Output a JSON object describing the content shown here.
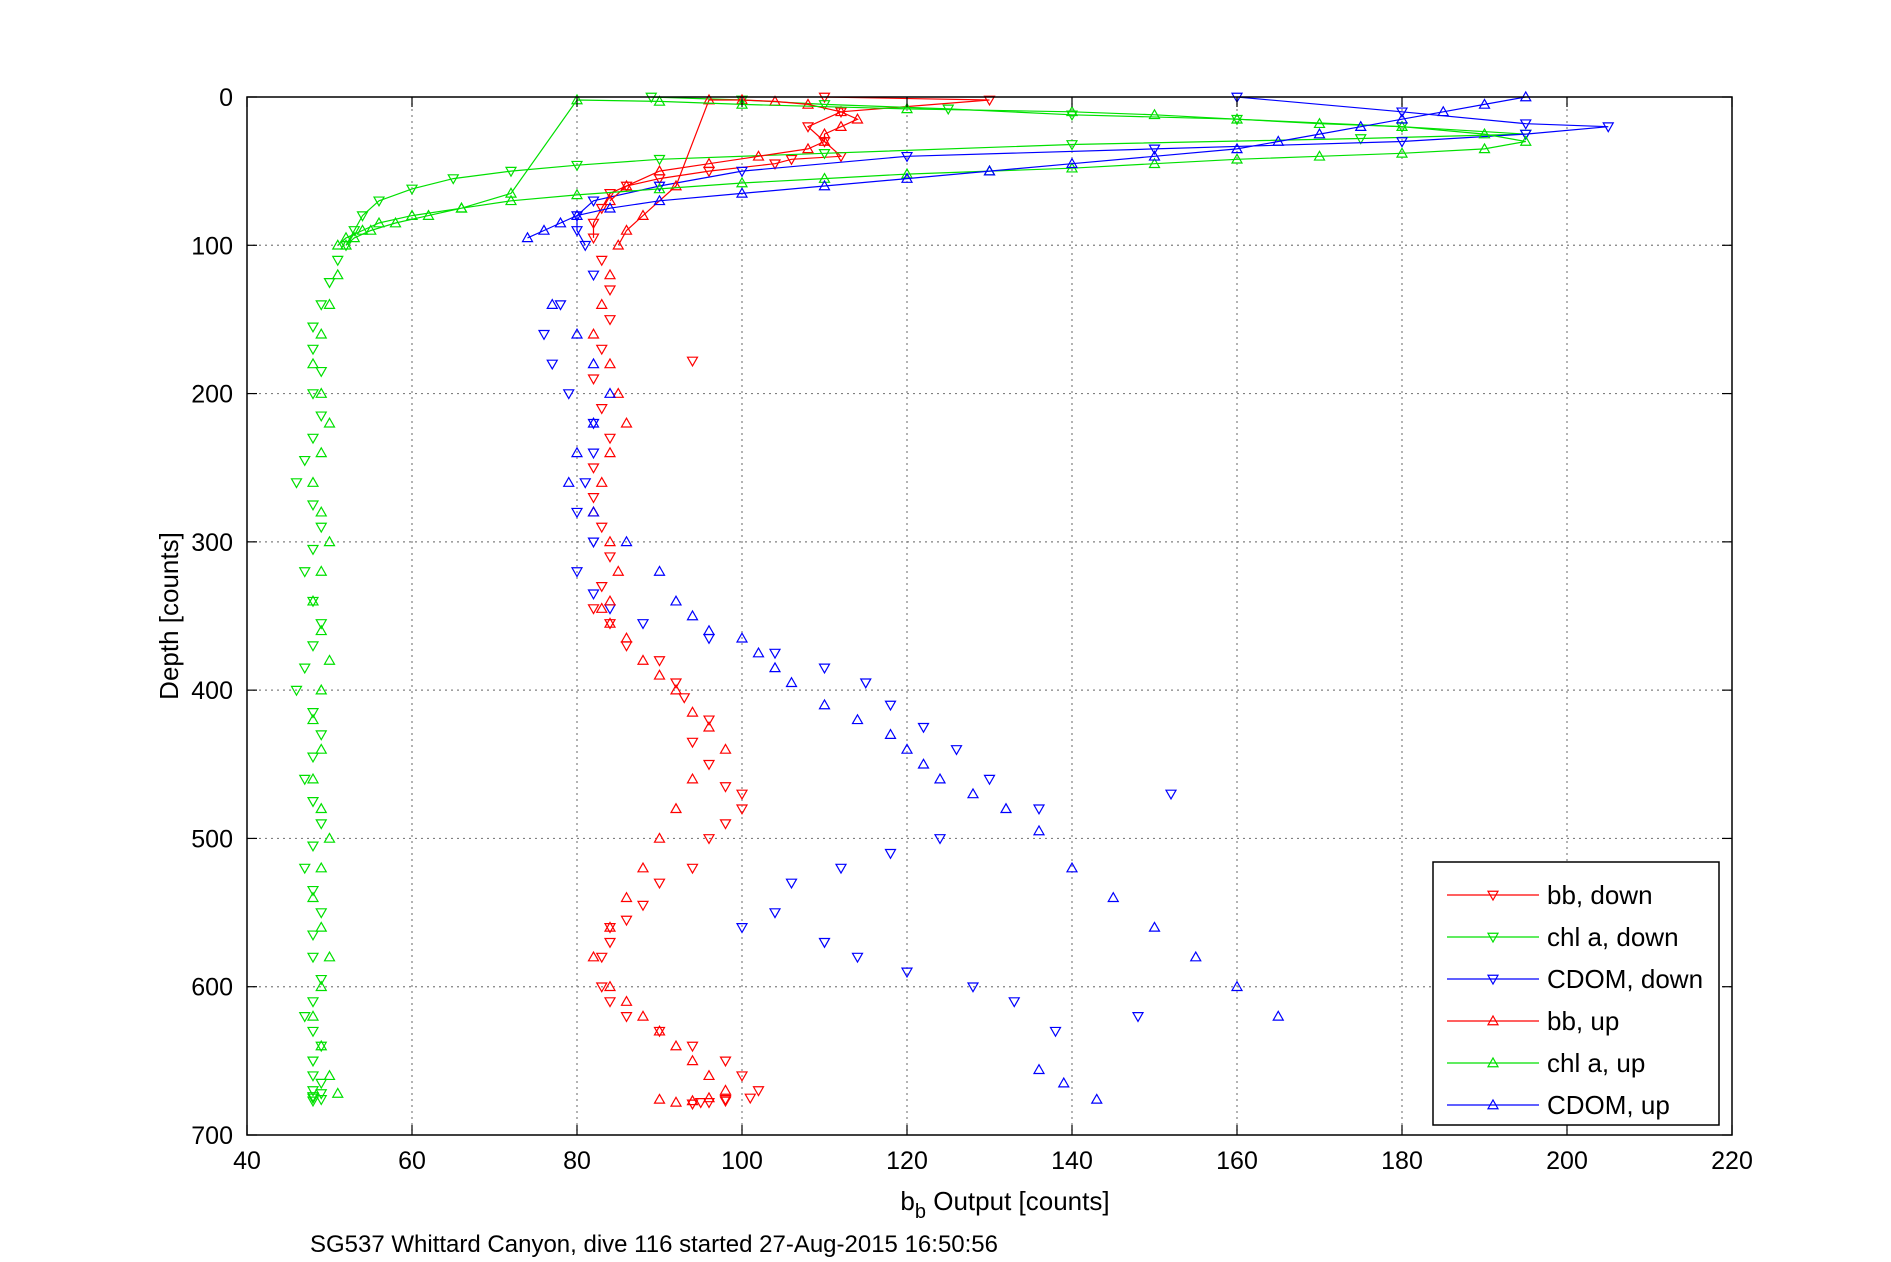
{
  "chart_data": {
    "type": "scatter",
    "title": "",
    "xlabel": "b",
    "xlabel_sub": "b",
    "xlabel_rest": " Output [counts]",
    "ylabel": "Depth [counts]",
    "xlim": [
      40,
      220
    ],
    "ylim": [
      0,
      700
    ],
    "y_reversed": true,
    "grid": true,
    "legend_position": "bottom-right",
    "xticks": [
      "40",
      "60",
      "80",
      "100",
      "120",
      "140",
      "160",
      "180",
      "200",
      "220"
    ],
    "yticks": [
      "0",
      "100",
      "200",
      "300",
      "400",
      "500",
      "600",
      "700"
    ],
    "footer": "SG537 Whittard Canyon, dive 116 started 27-Aug-2015 16:50:56",
    "series": [
      {
        "name": "bb, down",
        "color": "#ff0000",
        "marker": "down",
        "x": [
          110,
          130,
          112,
          108,
          110,
          112,
          106,
          104,
          96,
          90,
          86,
          84,
          83,
          82,
          82,
          83,
          84,
          84,
          83,
          82,
          83,
          84,
          82,
          82,
          83,
          84,
          83,
          82,
          84,
          86,
          90,
          92,
          93,
          96,
          94,
          96,
          98,
          100,
          100,
          98,
          96,
          94,
          90,
          88,
          86,
          84,
          84,
          83,
          83,
          84,
          86,
          90,
          94,
          98,
          100,
          102,
          101,
          98,
          96,
          94,
          95,
          98,
          94
        ],
        "y": [
          0,
          2,
          10,
          20,
          30,
          40,
          42,
          45,
          50,
          55,
          60,
          65,
          75,
          85,
          95,
          110,
          130,
          150,
          170,
          190,
          210,
          230,
          250,
          270,
          290,
          310,
          330,
          345,
          355,
          370,
          380,
          395,
          405,
          420,
          435,
          450,
          465,
          470,
          480,
          490,
          500,
          520,
          530,
          545,
          555,
          560,
          570,
          580,
          600,
          610,
          620,
          630,
          640,
          650,
          660,
          670,
          675,
          677,
          678,
          679,
          678,
          676,
          178
        ]
      },
      {
        "name": "chl a, down",
        "color": "#00e000",
        "marker": "down",
        "x": [
          89,
          100,
          110,
          125,
          140,
          160,
          180,
          195,
          175,
          140,
          110,
          90,
          80,
          72,
          65,
          60,
          56,
          54,
          53,
          52,
          51,
          50,
          49,
          48,
          48,
          49,
          48,
          49,
          48,
          47,
          46,
          48,
          49,
          48,
          47,
          48,
          49,
          48,
          47,
          46,
          48,
          49,
          48,
          47,
          48,
          49,
          48,
          47,
          48,
          49,
          48,
          48,
          49,
          48,
          47,
          48,
          49,
          48,
          48,
          49,
          48,
          49,
          48,
          48,
          49,
          48
        ],
        "y": [
          0,
          2,
          5,
          8,
          12,
          15,
          20,
          25,
          28,
          32,
          38,
          42,
          46,
          50,
          55,
          62,
          70,
          80,
          90,
          100,
          110,
          125,
          140,
          155,
          170,
          185,
          200,
          215,
          230,
          245,
          260,
          275,
          290,
          305,
          320,
          340,
          355,
          370,
          385,
          400,
          415,
          430,
          445,
          460,
          475,
          490,
          505,
          520,
          535,
          550,
          565,
          580,
          595,
          610,
          620,
          630,
          640,
          650,
          660,
          665,
          670,
          672,
          674,
          675,
          676,
          677
        ]
      },
      {
        "name": "CDOM, down",
        "color": "#0000ff",
        "marker": "down",
        "x": [
          160,
          180,
          195,
          205,
          195,
          180,
          150,
          120,
          100,
          90,
          82,
          80,
          80,
          81,
          82,
          78,
          76,
          77,
          79,
          82,
          82,
          81,
          80,
          82,
          80,
          82,
          84,
          88,
          96,
          104,
          110,
          115,
          118,
          122,
          126,
          130,
          136,
          152,
          124,
          118,
          112,
          106,
          104,
          100,
          110,
          114,
          120,
          128,
          133,
          148,
          138
        ],
        "y": [
          0,
          10,
          18,
          20,
          25,
          30,
          35,
          40,
          50,
          60,
          70,
          80,
          90,
          100,
          120,
          140,
          160,
          180,
          200,
          220,
          240,
          260,
          280,
          300,
          320,
          335,
          345,
          355,
          365,
          375,
          385,
          395,
          410,
          425,
          440,
          460,
          480,
          470,
          500,
          510,
          520,
          530,
          550,
          560,
          570,
          580,
          590,
          600,
          610,
          620,
          630
        ]
      },
      {
        "name": "bb, up",
        "color": "#ff0000",
        "marker": "up",
        "x": [
          84,
          86,
          90,
          96,
          102,
          108,
          110,
          110,
          112,
          114,
          112,
          108,
          104,
          100,
          96,
          92,
          88,
          86,
          85,
          84,
          83,
          82,
          84,
          85,
          86,
          84,
          83,
          82,
          84,
          85,
          84,
          83,
          84,
          86,
          88,
          90,
          92,
          94,
          96,
          98,
          94,
          92,
          90,
          88,
          86,
          84,
          82,
          84,
          86,
          88,
          90,
          92,
          94,
          96,
          98,
          96,
          94,
          92,
          90
        ],
        "y": [
          70,
          60,
          50,
          45,
          40,
          35,
          30,
          25,
          20,
          15,
          10,
          5,
          3,
          2,
          2,
          60,
          80,
          90,
          100,
          120,
          140,
          160,
          180,
          200,
          220,
          240,
          260,
          280,
          300,
          320,
          340,
          345,
          355,
          365,
          380,
          390,
          400,
          415,
          425,
          440,
          460,
          480,
          500,
          520,
          540,
          560,
          580,
          600,
          610,
          620,
          630,
          640,
          650,
          660,
          670,
          675,
          677,
          678,
          676
        ]
      },
      {
        "name": "chl a, up",
        "color": "#00e000",
        "marker": "up",
        "x": [
          51,
          52,
          54,
          56,
          60,
          66,
          72,
          80,
          90,
          100,
          110,
          120,
          130,
          140,
          150,
          160,
          170,
          180,
          190,
          195,
          190,
          180,
          170,
          160,
          150,
          140,
          120,
          100,
          90,
          80,
          72,
          66,
          62,
          58,
          55,
          53,
          52,
          51,
          50,
          49,
          48,
          49,
          50,
          49,
          48,
          49,
          50,
          49,
          48,
          49,
          50,
          49,
          48,
          49,
          48,
          49,
          50,
          49,
          48,
          49,
          50,
          49,
          48,
          49,
          50,
          51
        ],
        "y": [
          100,
          95,
          90,
          85,
          80,
          75,
          70,
          66,
          62,
          58,
          55,
          52,
          50,
          48,
          45,
          42,
          40,
          38,
          35,
          30,
          25,
          20,
          18,
          15,
          12,
          10,
          8,
          5,
          3,
          2,
          65,
          75,
          80,
          85,
          90,
          95,
          100,
          120,
          140,
          160,
          180,
          200,
          220,
          240,
          260,
          280,
          300,
          320,
          340,
          360,
          380,
          400,
          420,
          440,
          460,
          480,
          500,
          520,
          540,
          560,
          580,
          600,
          620,
          640,
          660,
          672
        ]
      },
      {
        "name": "CDOM, up",
        "color": "#0000ff",
        "marker": "up",
        "x": [
          195,
          190,
          185,
          180,
          175,
          170,
          165,
          160,
          150,
          140,
          130,
          120,
          110,
          100,
          90,
          84,
          80,
          78,
          76,
          74,
          77,
          80,
          82,
          84,
          82,
          80,
          79,
          82,
          86,
          90,
          92,
          94,
          96,
          100,
          102,
          104,
          106,
          110,
          114,
          118,
          120,
          122,
          124,
          128,
          132,
          136,
          140,
          145,
          150,
          155,
          160,
          165,
          136,
          139,
          143
        ],
        "y": [
          0,
          5,
          10,
          15,
          20,
          25,
          30,
          35,
          40,
          45,
          50,
          55,
          60,
          65,
          70,
          75,
          80,
          85,
          90,
          95,
          140,
          160,
          180,
          200,
          220,
          240,
          260,
          280,
          300,
          320,
          340,
          350,
          360,
          365,
          375,
          385,
          395,
          410,
          420,
          430,
          440,
          450,
          460,
          470,
          480,
          495,
          520,
          540,
          560,
          580,
          600,
          620,
          656,
          665,
          676
        ]
      }
    ]
  }
}
